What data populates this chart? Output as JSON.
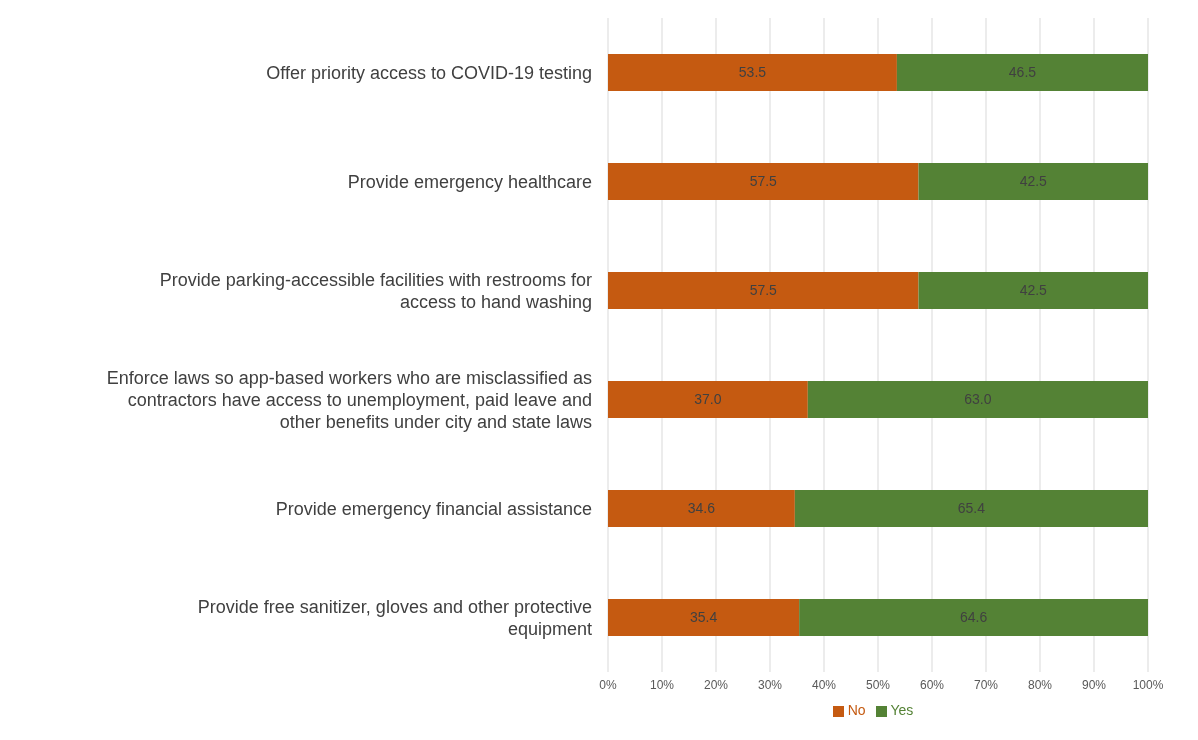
{
  "chart_data": {
    "type": "bar",
    "orientation": "horizontal",
    "stacked": true,
    "categories": [
      "Offer priority access to COVID-19 testing",
      "Provide emergency healthcare",
      "Provide parking-accessible facilities with restrooms for access to hand washing",
      "Enforce laws so app-based workers who are misclassified as contractors have access to unemployment, paid leave and other benefits under city and state laws",
      "Provide emergency financial assistance",
      "Provide free sanitizer, gloves and other protective equipment"
    ],
    "series": [
      {
        "name": "No",
        "color": "#c55a11",
        "values": [
          53.5,
          57.5,
          57.5,
          37.0,
          34.6,
          35.4
        ]
      },
      {
        "name": "Yes",
        "color": "#548235",
        "values": [
          46.5,
          42.5,
          42.5,
          63.0,
          65.4,
          64.6
        ]
      }
    ],
    "value_labels": [
      [
        "53.5",
        "57.5",
        "57.5",
        "37.0",
        "34.6",
        "35.4"
      ],
      [
        "46.5",
        "42.5",
        "42.5",
        "63.0",
        "65.4",
        "64.6"
      ]
    ],
    "xlim": [
      0,
      100
    ],
    "xticks": [
      {
        "value": 0,
        "label": "0%"
      },
      {
        "value": 10,
        "label": "10%"
      },
      {
        "value": 20,
        "label": "20%"
      },
      {
        "value": 30,
        "label": "30%"
      },
      {
        "value": 40,
        "label": "40%"
      },
      {
        "value": 50,
        "label": "50%"
      },
      {
        "value": 60,
        "label": "60%"
      },
      {
        "value": 70,
        "label": "70%"
      },
      {
        "value": 80,
        "label": "80%"
      },
      {
        "value": 90,
        "label": "90%"
      },
      {
        "value": 100,
        "label": "100%"
      }
    ],
    "grid": "x",
    "legend": "bottom"
  }
}
